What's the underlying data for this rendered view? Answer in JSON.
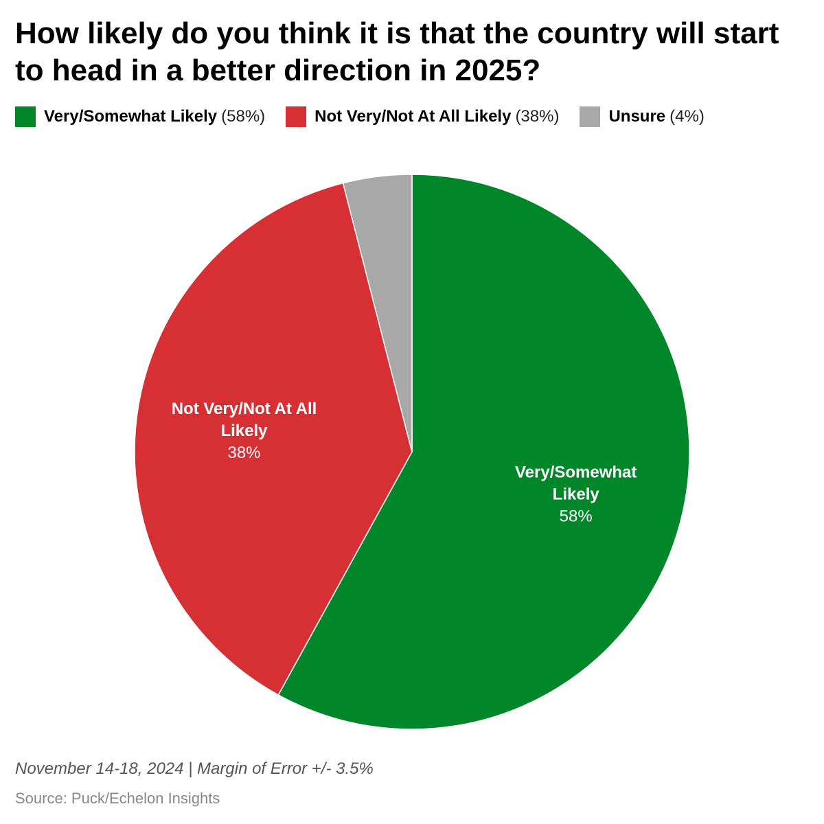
{
  "chart_data": {
    "type": "pie",
    "title": "How likely do you think it is that the country will start to head in a better direction in 2025?",
    "categories": [
      "Very/Somewhat Likely",
      "Not Very/Not At All Likely",
      "Unsure"
    ],
    "values": [
      58,
      38,
      4
    ],
    "colors": [
      "#02862a",
      "#d63035",
      "#a8a8a8"
    ],
    "legend": [
      {
        "name": "Very/Somewhat Likely",
        "pct": "(58%)",
        "color": "#02862a"
      },
      {
        "name": "Not Very/Not At All Likely",
        "pct": "(38%)",
        "color": "#d63035"
      },
      {
        "name": "Unsure",
        "pct": "(4%)",
        "color": "#a8a8a8"
      }
    ],
    "slice_labels": [
      {
        "lines": [
          "Very/Somewhat",
          "Likely"
        ],
        "pct": "58%"
      },
      {
        "lines": [
          "Not Very/Not At All",
          "Likely"
        ],
        "pct": "38%"
      },
      null
    ],
    "legend_placement": "top-left"
  },
  "footer": {
    "date_note": "November 14-18, 2024 | Margin of Error +/- 3.5%",
    "source": "Source: Puck/Echelon Insights"
  }
}
